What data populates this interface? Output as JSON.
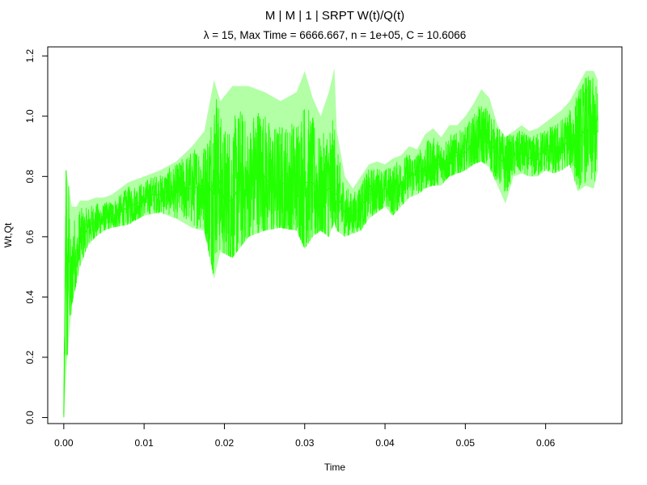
{
  "chart_data": {
    "type": "line",
    "title": "M | M | 1 | SRPT W(t)/Q(t)",
    "subtitle": "λ = 15, Max Time = 6666.667, n = 1e+05, C = 10.6066",
    "xlabel": "Time",
    "ylabel": "Wt,Qt",
    "xlim": [
      -0.002,
      0.0695
    ],
    "ylim": [
      -0.02,
      1.23
    ],
    "x_ticks": [
      "0.00",
      "0.01",
      "0.02",
      "0.03",
      "0.04",
      "0.05",
      "0.06"
    ],
    "y_ticks": [
      "0.0",
      "0.2",
      "0.4",
      "0.6",
      "0.8",
      "1.0",
      "1.2"
    ],
    "grid": false,
    "series": [
      {
        "color": "#22ff00",
        "points": [
          [
            0.0,
            0.01
          ],
          [
            0.0002,
            0.45
          ],
          [
            0.0003,
            0.82
          ],
          [
            0.0004,
            0.27
          ],
          [
            0.0006,
            0.6
          ],
          [
            0.0009,
            0.38
          ],
          [
            0.0012,
            0.55
          ],
          [
            0.0016,
            0.5
          ],
          [
            0.002,
            0.6
          ],
          [
            0.0025,
            0.6
          ],
          [
            0.003,
            0.63
          ],
          [
            0.004,
            0.65
          ],
          [
            0.005,
            0.66
          ],
          [
            0.006,
            0.67
          ],
          [
            0.007,
            0.68
          ],
          [
            0.008,
            0.7
          ],
          [
            0.009,
            0.71
          ],
          [
            0.01,
            0.72
          ],
          [
            0.011,
            0.74
          ],
          [
            0.012,
            0.74
          ],
          [
            0.013,
            0.75
          ],
          [
            0.014,
            0.75
          ],
          [
            0.015,
            0.76
          ],
          [
            0.016,
            0.76
          ],
          [
            0.017,
            0.77
          ],
          [
            0.018,
            0.74
          ],
          [
            0.0187,
            0.78
          ],
          [
            0.019,
            0.82
          ],
          [
            0.02,
            0.72
          ],
          [
            0.021,
            0.72
          ],
          [
            0.022,
            0.78
          ],
          [
            0.023,
            0.73
          ],
          [
            0.024,
            0.82
          ],
          [
            0.025,
            0.8
          ],
          [
            0.026,
            0.76
          ],
          [
            0.027,
            0.78
          ],
          [
            0.028,
            0.77
          ],
          [
            0.029,
            0.78
          ],
          [
            0.03,
            0.78
          ],
          [
            0.031,
            0.78
          ],
          [
            0.032,
            0.74
          ],
          [
            0.033,
            0.76
          ],
          [
            0.034,
            0.74
          ],
          [
            0.035,
            0.68
          ],
          [
            0.036,
            0.67
          ],
          [
            0.037,
            0.7
          ],
          [
            0.038,
            0.74
          ],
          [
            0.039,
            0.75
          ],
          [
            0.04,
            0.76
          ],
          [
            0.041,
            0.75
          ],
          [
            0.042,
            0.78
          ],
          [
            0.043,
            0.8
          ],
          [
            0.044,
            0.81
          ],
          [
            0.045,
            0.83
          ],
          [
            0.046,
            0.84
          ],
          [
            0.047,
            0.84
          ],
          [
            0.048,
            0.86
          ],
          [
            0.049,
            0.87
          ],
          [
            0.05,
            0.88
          ],
          [
            0.051,
            0.91
          ],
          [
            0.052,
            0.93
          ],
          [
            0.053,
            0.92
          ],
          [
            0.054,
            0.87
          ],
          [
            0.055,
            0.84
          ],
          [
            0.056,
            0.87
          ],
          [
            0.057,
            0.88
          ],
          [
            0.058,
            0.86
          ],
          [
            0.059,
            0.87
          ],
          [
            0.06,
            0.89
          ],
          [
            0.061,
            0.88
          ],
          [
            0.062,
            0.9
          ],
          [
            0.063,
            0.92
          ],
          [
            0.064,
            0.92
          ],
          [
            0.065,
            0.96
          ],
          [
            0.066,
            0.94
          ],
          [
            0.0665,
            0.95
          ]
        ],
        "band": [
          [
            0.0,
            0.0,
            0.1
          ],
          [
            0.0003,
            0.15,
            0.82
          ],
          [
            0.0006,
            0.25,
            0.77
          ],
          [
            0.001,
            0.37,
            0.7
          ],
          [
            0.0016,
            0.45,
            0.7
          ],
          [
            0.002,
            0.5,
            0.72
          ],
          [
            0.003,
            0.57,
            0.72
          ],
          [
            0.004,
            0.6,
            0.73
          ],
          [
            0.005,
            0.62,
            0.73
          ],
          [
            0.006,
            0.63,
            0.74
          ],
          [
            0.008,
            0.64,
            0.78
          ],
          [
            0.01,
            0.67,
            0.8
          ],
          [
            0.012,
            0.68,
            0.82
          ],
          [
            0.014,
            0.66,
            0.85
          ],
          [
            0.016,
            0.63,
            0.9
          ],
          [
            0.0175,
            0.62,
            0.95
          ],
          [
            0.0187,
            0.46,
            1.12
          ],
          [
            0.0195,
            0.55,
            1.05
          ],
          [
            0.021,
            0.53,
            1.1
          ],
          [
            0.023,
            0.6,
            1.1
          ],
          [
            0.025,
            0.62,
            1.08
          ],
          [
            0.027,
            0.63,
            1.05
          ],
          [
            0.029,
            0.62,
            1.08
          ],
          [
            0.03,
            0.56,
            1.15
          ],
          [
            0.031,
            0.6,
            1.06
          ],
          [
            0.032,
            0.62,
            1.0
          ],
          [
            0.033,
            0.6,
            1.08
          ],
          [
            0.0337,
            0.65,
            1.16
          ],
          [
            0.034,
            0.62,
            0.95
          ],
          [
            0.035,
            0.6,
            0.8
          ],
          [
            0.036,
            0.61,
            0.76
          ],
          [
            0.037,
            0.62,
            0.8
          ],
          [
            0.038,
            0.66,
            0.84
          ],
          [
            0.039,
            0.68,
            0.85
          ],
          [
            0.04,
            0.7,
            0.84
          ],
          [
            0.041,
            0.67,
            0.86
          ],
          [
            0.042,
            0.7,
            0.87
          ],
          [
            0.043,
            0.73,
            0.9
          ],
          [
            0.044,
            0.74,
            0.89
          ],
          [
            0.045,
            0.76,
            0.94
          ],
          [
            0.046,
            0.77,
            0.96
          ],
          [
            0.047,
            0.77,
            0.93
          ],
          [
            0.048,
            0.8,
            0.97
          ],
          [
            0.049,
            0.81,
            0.97
          ],
          [
            0.05,
            0.82,
            1.0
          ],
          [
            0.051,
            0.84,
            1.04
          ],
          [
            0.052,
            0.85,
            1.09
          ],
          [
            0.053,
            0.83,
            1.06
          ],
          [
            0.054,
            0.77,
            0.97
          ],
          [
            0.055,
            0.71,
            0.93
          ],
          [
            0.056,
            0.8,
            0.95
          ],
          [
            0.057,
            0.81,
            0.97
          ],
          [
            0.058,
            0.8,
            0.95
          ],
          [
            0.059,
            0.8,
            0.96
          ],
          [
            0.06,
            0.82,
            0.98
          ],
          [
            0.061,
            0.81,
            1.0
          ],
          [
            0.062,
            0.82,
            1.02
          ],
          [
            0.063,
            0.84,
            1.05
          ],
          [
            0.064,
            0.75,
            1.1
          ],
          [
            0.065,
            0.77,
            1.15
          ],
          [
            0.066,
            0.76,
            1.15
          ],
          [
            0.0665,
            0.82,
            1.12
          ]
        ]
      }
    ]
  }
}
